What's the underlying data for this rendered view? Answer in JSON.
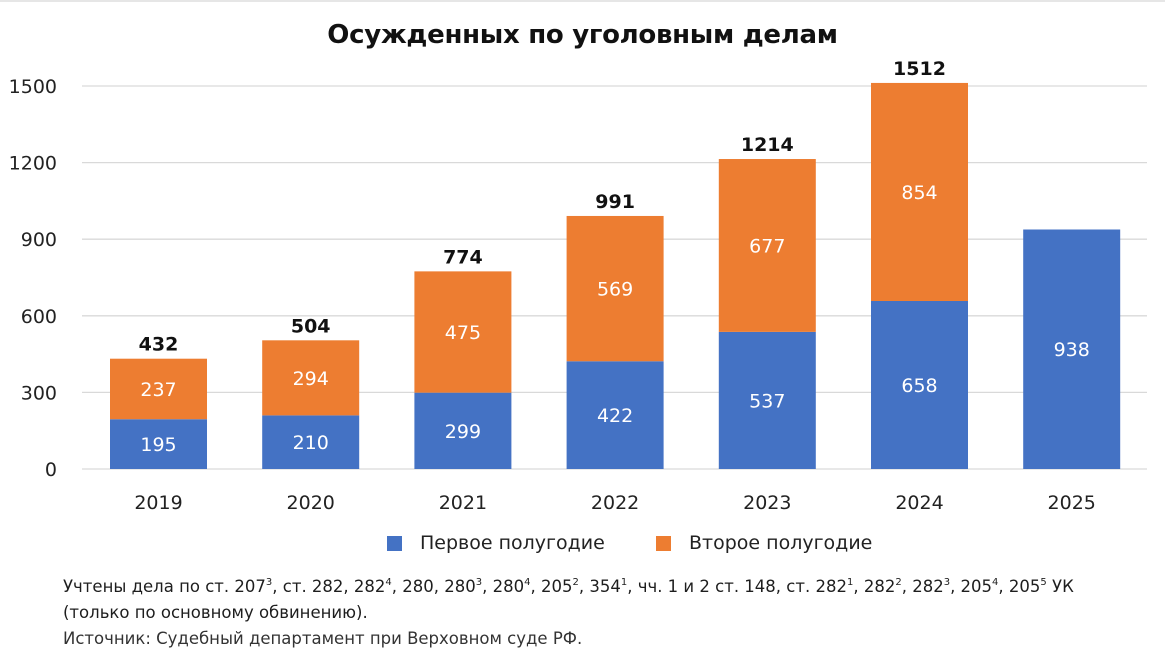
{
  "title": "Осужденных по уголовным делам",
  "colors": {
    "first_half": "#4472C4",
    "second_half": "#ED7D31",
    "grid": "#d9d9d9",
    "text": "#1a1a1a"
  },
  "legend": [
    {
      "label": "Первое полугодие",
      "color": "#4472C4"
    },
    {
      "label": "Второе полугодие",
      "color": "#ED7D31"
    }
  ],
  "chart_data": {
    "type": "bar",
    "stacked": true,
    "title": "Осужденных по уголовным делам",
    "xlabel": "",
    "ylabel": "",
    "categories": [
      "2019",
      "2020",
      "2021",
      "2022",
      "2023",
      "2024",
      "2025"
    ],
    "series": [
      {
        "name": "Первое полугодие",
        "values": [
          195,
          210,
          299,
          422,
          537,
          658,
          938
        ]
      },
      {
        "name": "Второе полугодие",
        "values": [
          237,
          294,
          475,
          569,
          677,
          854,
          null
        ]
      }
    ],
    "totals": [
      "432",
      "504",
      "774",
      "991",
      "1214",
      "1512",
      null
    ],
    "segment_labels": {
      "first": [
        "195",
        "210",
        "299",
        "422",
        "537",
        "658",
        "938"
      ],
      "second": [
        "237",
        "294",
        "475",
        "569",
        "677",
        "854",
        null
      ]
    },
    "yticks": [
      "0",
      "300",
      "600",
      "900",
      "1200",
      "1500"
    ],
    "ytick_values": [
      0,
      300,
      600,
      900,
      1200,
      1500
    ],
    "ylim": [
      0,
      1500
    ],
    "grid": true,
    "legend_position": "bottom"
  },
  "notes": {
    "line1_parts": [
      {
        "t": "Учтены дела по ст. 207"
      },
      {
        "s": "3"
      },
      {
        "t": ", ст. 282, 282"
      },
      {
        "s": "4"
      },
      {
        "t": ", 280, 280"
      },
      {
        "s": "3"
      },
      {
        "t": ", 280"
      },
      {
        "s": "4"
      },
      {
        "t": ", 205"
      },
      {
        "s": "2"
      },
      {
        "t": ", 354"
      },
      {
        "s": "1"
      },
      {
        "t": ", чч. 1 и 2 ст. 148, ст. 282"
      },
      {
        "s": "1"
      },
      {
        "t": ", 282"
      },
      {
        "s": "2"
      },
      {
        "t": ", 282"
      },
      {
        "s": "3"
      },
      {
        "t": ", 205"
      },
      {
        "s": "4"
      },
      {
        "t": ", 205"
      },
      {
        "s": "5"
      },
      {
        "t": " УК"
      }
    ],
    "line2": "(только по основному обвинению).",
    "source": "Источник: Судебный департамент при Верховном суде РФ."
  }
}
